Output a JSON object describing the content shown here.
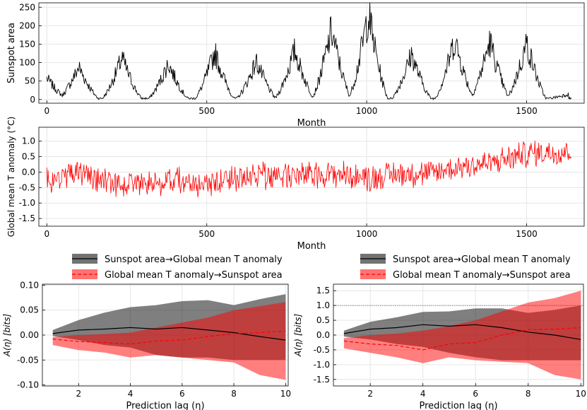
{
  "chart_data": [
    {
      "type": "line",
      "xlabel": "Month",
      "ylabel": "Sunspot area",
      "xlim": [
        -25,
        1680
      ],
      "ylim": [
        -10,
        262
      ],
      "xticks": [
        0,
        500,
        1000,
        1500
      ],
      "yticks": [
        0,
        50,
        100,
        150,
        200,
        250
      ],
      "grid": true,
      "line_color": "#000000",
      "cycle_peaks": [
        {
          "month": 0,
          "value": 55
        },
        {
          "month": 100,
          "value": 85
        },
        {
          "month": 235,
          "value": 110
        },
        {
          "month": 380,
          "value": 95
        },
        {
          "month": 525,
          "value": 125
        },
        {
          "month": 655,
          "value": 100
        },
        {
          "month": 775,
          "value": 130
        },
        {
          "month": 890,
          "value": 185
        },
        {
          "month": 1005,
          "value": 230
        },
        {
          "month": 1140,
          "value": 120
        },
        {
          "month": 1275,
          "value": 160
        },
        {
          "month": 1385,
          "value": 155
        },
        {
          "month": 1500,
          "value": 150
        },
        {
          "month": 1630,
          "value": 12
        }
      ]
    },
    {
      "type": "line",
      "xlabel": "Month",
      "ylabel": "Global mean T anomaly (°C)",
      "xlim": [
        -25,
        1680
      ],
      "ylim": [
        -1.75,
        1.45
      ],
      "xticks": [
        0,
        500,
        1000,
        1500
      ],
      "yticks": [
        -1.5,
        -1.0,
        -0.5,
        0.0,
        0.5,
        1.0
      ],
      "ytick_labels": [
        "-1.5",
        "-1.0",
        "-0.5",
        "0.0",
        "0.5",
        "1.0"
      ],
      "grid": true,
      "line_color": "#ff0000",
      "trend": [
        {
          "month": 0,
          "value": -0.25
        },
        {
          "month": 100,
          "value": 0.0
        },
        {
          "month": 200,
          "value": -0.4
        },
        {
          "month": 300,
          "value": -0.3
        },
        {
          "month": 400,
          "value": -0.3
        },
        {
          "month": 500,
          "value": -0.4
        },
        {
          "month": 600,
          "value": -0.15
        },
        {
          "month": 700,
          "value": -0.15
        },
        {
          "month": 800,
          "value": -0.1
        },
        {
          "month": 900,
          "value": -0.05
        },
        {
          "month": 1000,
          "value": -0.2
        },
        {
          "month": 1100,
          "value": -0.05
        },
        {
          "month": 1200,
          "value": -0.05
        },
        {
          "month": 1300,
          "value": 0.2
        },
        {
          "month": 1400,
          "value": 0.3
        },
        {
          "month": 1500,
          "value": 0.6
        },
        {
          "month": 1640,
          "value": 0.7
        }
      ]
    },
    {
      "type": "area",
      "xlabel": "Prediction lag (η)",
      "ylabel": "A(η) [bits]",
      "xlim": [
        0.6,
        10.1
      ],
      "ylim": [
        -0.102,
        0.102
      ],
      "xticks": [
        2,
        4,
        6,
        8,
        10
      ],
      "yticks": [
        -0.1,
        -0.05,
        0.0,
        0.05,
        0.1
      ],
      "ytick_labels": [
        "-0.10",
        "-0.05",
        "0.00",
        "0.05",
        "0.10"
      ],
      "grid": true,
      "legend_position": "top",
      "series": [
        {
          "name": "Sunspot area→Global mean T anomaly",
          "color": "#000000",
          "x": [
            1,
            2,
            3,
            4,
            5,
            6,
            7,
            8,
            9,
            10
          ],
          "mean": [
            0.003,
            0.01,
            0.012,
            0.015,
            0.012,
            0.015,
            0.01,
            0.005,
            -0.003,
            -0.01
          ],
          "upper": [
            0.01,
            0.03,
            0.045,
            0.056,
            0.06,
            0.068,
            0.07,
            0.06,
            0.072,
            0.082
          ],
          "lower": [
            -0.002,
            -0.01,
            -0.02,
            -0.025,
            -0.04,
            -0.045,
            -0.045,
            -0.05,
            -0.05,
            -0.05
          ]
        },
        {
          "name": "Global mean T anomaly→Sunspot area",
          "color": "#ff0000",
          "x": [
            1,
            2,
            3,
            4,
            5,
            6,
            7,
            8,
            9,
            10
          ],
          "mean": [
            -0.008,
            -0.013,
            -0.015,
            -0.018,
            -0.012,
            -0.01,
            -0.003,
            0.003,
            0.005,
            0.008
          ],
          "upper": [
            -0.004,
            0.0,
            0.002,
            0.005,
            0.015,
            0.025,
            0.035,
            0.05,
            0.058,
            0.066
          ],
          "lower": [
            -0.02,
            -0.03,
            -0.035,
            -0.045,
            -0.04,
            -0.045,
            -0.05,
            -0.055,
            -0.08,
            -0.09
          ]
        }
      ]
    },
    {
      "type": "area",
      "xlabel": "Prediction lag (η)",
      "ylabel": "A(η) [bits]",
      "xlim": [
        0.6,
        10.1
      ],
      "ylim": [
        -1.72,
        1.72
      ],
      "xticks": [
        2,
        4,
        6,
        8,
        10
      ],
      "yticks": [
        -1.5,
        -1.0,
        -0.5,
        0.0,
        0.5,
        1.0,
        1.5
      ],
      "ytick_labels": [
        "-1.5",
        "-1.0",
        "-0.5",
        "0.0",
        "0.5",
        "1.0",
        "1.5"
      ],
      "reference_line": 1.0,
      "grid": true,
      "legend_position": "top",
      "series": [
        {
          "name": "Sunspot area→Global mean T anomaly",
          "color": "#000000",
          "x": [
            1,
            2,
            3,
            4,
            5,
            6,
            7,
            8,
            9,
            10
          ],
          "mean": [
            0.05,
            0.2,
            0.25,
            0.35,
            0.3,
            0.35,
            0.25,
            0.1,
            0.0,
            -0.15
          ],
          "upper": [
            0.15,
            0.45,
            0.6,
            0.78,
            0.8,
            0.9,
            0.9,
            0.75,
            0.85,
            1.0
          ],
          "lower": [
            -0.05,
            -0.15,
            -0.3,
            -0.4,
            -0.6,
            -0.75,
            -0.85,
            -0.85,
            -0.85,
            -0.85
          ]
        },
        {
          "name": "Global mean T anomaly→Sunspot area",
          "color": "#ff0000",
          "x": [
            1,
            2,
            3,
            4,
            5,
            6,
            7,
            8,
            9,
            10
          ],
          "mean": [
            -0.2,
            -0.3,
            -0.35,
            -0.5,
            -0.3,
            -0.25,
            0.0,
            0.18,
            0.2,
            0.25
          ],
          "upper": [
            -0.1,
            0.0,
            0.05,
            0.15,
            0.3,
            0.5,
            0.8,
            1.1,
            1.25,
            1.5
          ],
          "lower": [
            -0.45,
            -0.6,
            -0.75,
            -0.95,
            -0.75,
            -0.85,
            -0.9,
            -0.95,
            -1.35,
            -1.5
          ]
        }
      ]
    }
  ]
}
